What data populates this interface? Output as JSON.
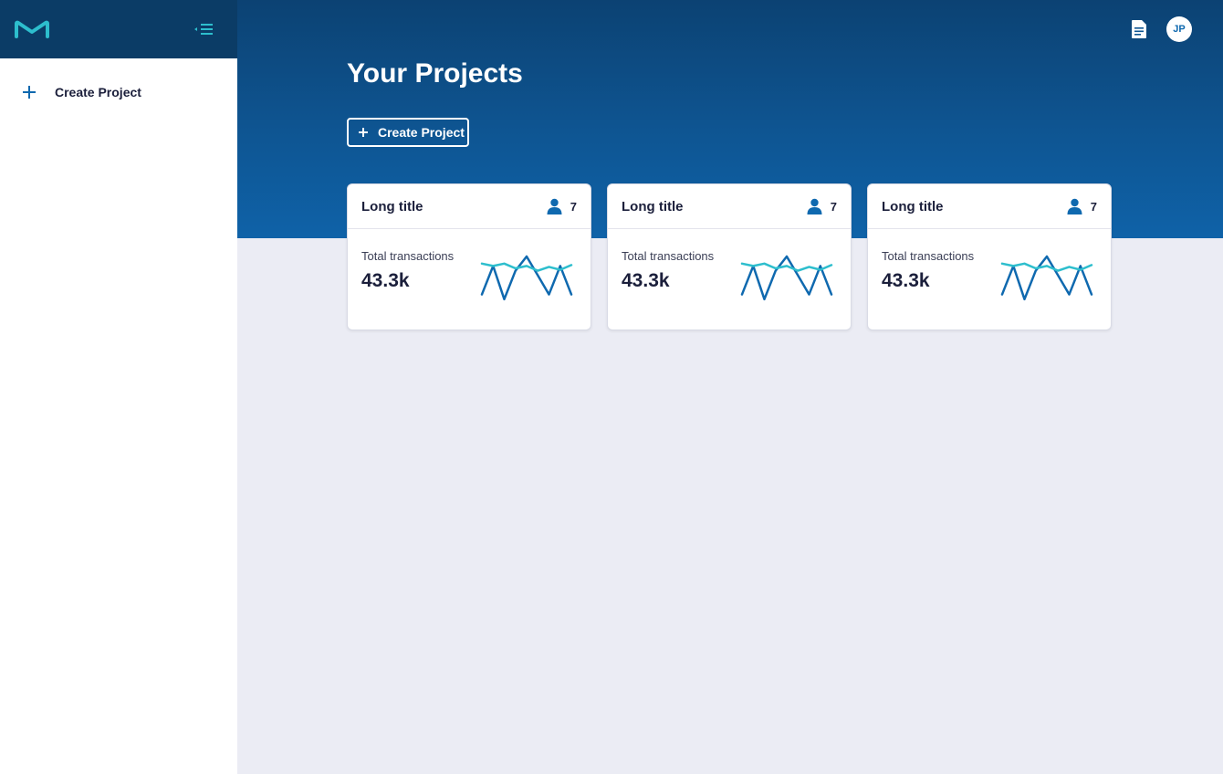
{
  "colors": {
    "brand_dark": "#0b3c66",
    "brand_blue": "#0f69af",
    "teal": "#2dbecd",
    "background": "#ebecf4"
  },
  "sidebar": {
    "logo_icon": "brand-m-logo",
    "collapse_icon": "collapse-menu-icon",
    "items": [
      {
        "label": "Create Project",
        "icon": "plus-icon"
      }
    ]
  },
  "header": {
    "docs_icon": "document-icon",
    "avatar_initials": "JP"
  },
  "main": {
    "title": "Your Projects",
    "create_button_label": "Create Project",
    "cards": [
      {
        "title": "Long title",
        "members": "7",
        "metric_label": "Total transactions",
        "metric_value": "43.3k"
      },
      {
        "title": "Long title",
        "members": "7",
        "metric_label": "Total transactions",
        "metric_value": "43.3k"
      },
      {
        "title": "Long title",
        "members": "7",
        "metric_label": "Total transactions",
        "metric_value": "43.3k"
      }
    ]
  },
  "chart_data": {
    "type": "line",
    "x": [
      0,
      1,
      2,
      3,
      4,
      5,
      6,
      7,
      8
    ],
    "series": [
      {
        "values": [
          0.2,
          0.8,
          0.1,
          0.7,
          1.0,
          0.6,
          0.2,
          0.8,
          0.2
        ]
      },
      {
        "values": [
          0.85,
          0.8,
          0.85,
          0.75,
          0.8,
          0.7,
          0.78,
          0.72,
          0.82
        ]
      }
    ]
  }
}
